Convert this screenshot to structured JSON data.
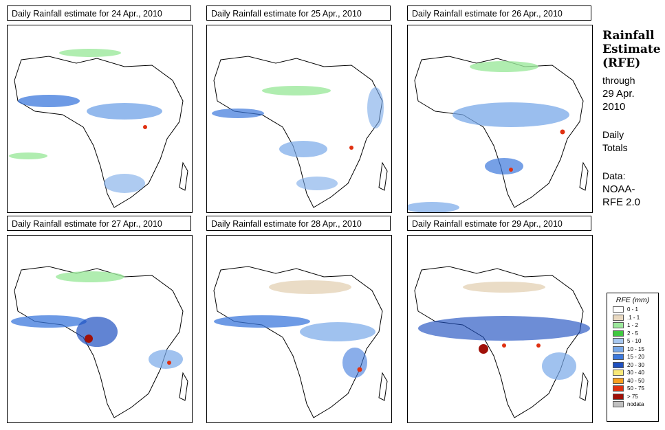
{
  "panels": [
    {
      "title": "Daily Rainfall estimate for  24 Apr., 2010"
    },
    {
      "title": "Daily Rainfall estimate for  25 Apr., 2010"
    },
    {
      "title": "Daily Rainfall estimate for  26 Apr., 2010"
    },
    {
      "title": "Daily Rainfall estimate for  27 Apr., 2010"
    },
    {
      "title": "Daily Rainfall estimate for  28 Apr., 2010"
    },
    {
      "title": "Daily Rainfall estimate for  29 Apr., 2010"
    }
  ],
  "sidebar": {
    "heading_line1": "Rainfall",
    "heading_line2": "Estimate",
    "heading_line3": "(RFE)",
    "through_label": "through",
    "through_date_line1": "29 Apr.",
    "through_date_line2": "2010",
    "totals_line1": "Daily",
    "totals_line2": "Totals",
    "data_label": "Data:",
    "data_source_line1": "NOAA-",
    "data_source_line2": "RFE 2.0"
  },
  "legend": {
    "title": "RFE (mm)",
    "items": [
      {
        "label": "0 - 1",
        "color": "#ffffff"
      },
      {
        "label": ".1 - 1",
        "color": "#e8d8c0"
      },
      {
        "label": "1 - 2",
        "color": "#9ce89c"
      },
      {
        "label": "2 - 5",
        "color": "#40c840"
      },
      {
        "label": "5 - 10",
        "color": "#a8c8f0"
      },
      {
        "label": "10 - 15",
        "color": "#78a8e8"
      },
      {
        "label": "15 - 20",
        "color": "#3c78dc"
      },
      {
        "label": "20 - 30",
        "color": "#1e50c0"
      },
      {
        "label": "30 - 40",
        "color": "#f8e878"
      },
      {
        "label": "40 - 50",
        "color": "#f8a020"
      },
      {
        "label": "50 - 75",
        "color": "#e03010"
      },
      {
        "label": "> 75",
        "color": "#a01008"
      },
      {
        "label": "nodata",
        "color": "#c0c0c0"
      }
    ]
  }
}
